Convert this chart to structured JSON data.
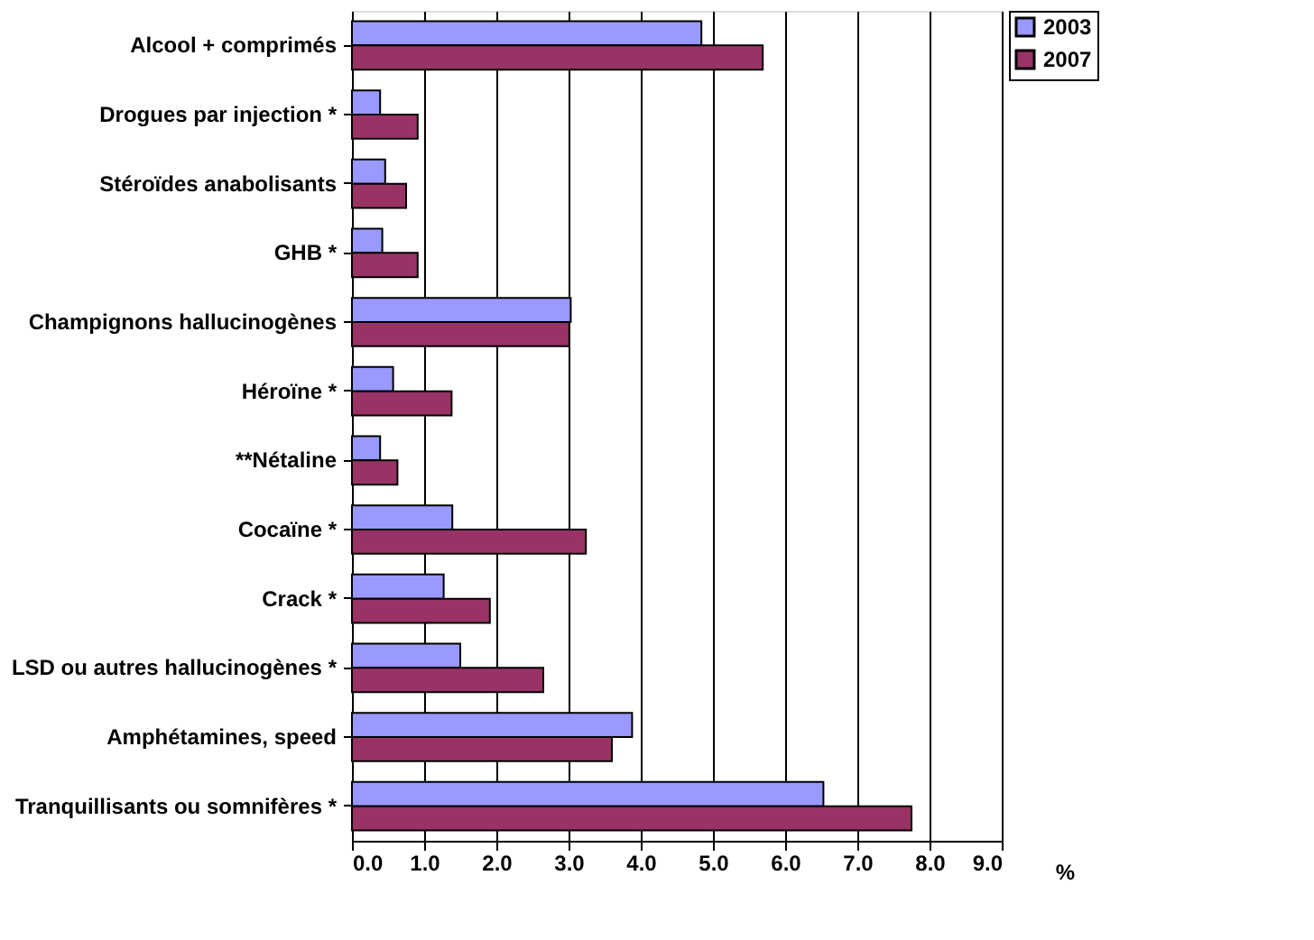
{
  "chart_data": {
    "type": "bar",
    "orientation": "horizontal",
    "categories": [
      "Alcool + comprimés",
      "Drogues par injection *",
      "Stéroïdes anabolisants",
      "GHB *",
      "Champignons hallucinogènes",
      "Héroïne *",
      "**Nétaline",
      "Cocaïne *",
      "Crack *",
      "LSD ou autres hallucinogènes *",
      "Amphétamines, speed",
      "Tranquillisants ou somnifères *"
    ],
    "series": [
      {
        "name": "2003",
        "color": "#9999ff",
        "values": [
          4.84,
          0.39,
          0.46,
          0.42,
          3.03,
          0.57,
          0.39,
          1.39,
          1.27,
          1.5,
          3.88,
          6.53
        ]
      },
      {
        "name": "2007",
        "color": "#993366",
        "values": [
          5.69,
          0.91,
          0.75,
          0.91,
          3.01,
          1.38,
          0.63,
          3.24,
          1.91,
          2.65,
          3.6,
          7.75
        ]
      }
    ],
    "xlabel": "%",
    "xlim": [
      0,
      9
    ],
    "xticks": [
      {
        "value": 0,
        "label": "0.0"
      },
      {
        "value": 1,
        "label": "1.0"
      },
      {
        "value": 2,
        "label": "2.0"
      },
      {
        "value": 3,
        "label": "3.0"
      },
      {
        "value": 4,
        "label": "4.0"
      },
      {
        "value": 5,
        "label": "5.0"
      },
      {
        "value": 6,
        "label": "6.0"
      },
      {
        "value": 7,
        "label": "7.0"
      },
      {
        "value": 8,
        "label": "8.0"
      },
      {
        "value": 9,
        "label": "9.0"
      }
    ],
    "grid": "x",
    "legend": "right"
  }
}
